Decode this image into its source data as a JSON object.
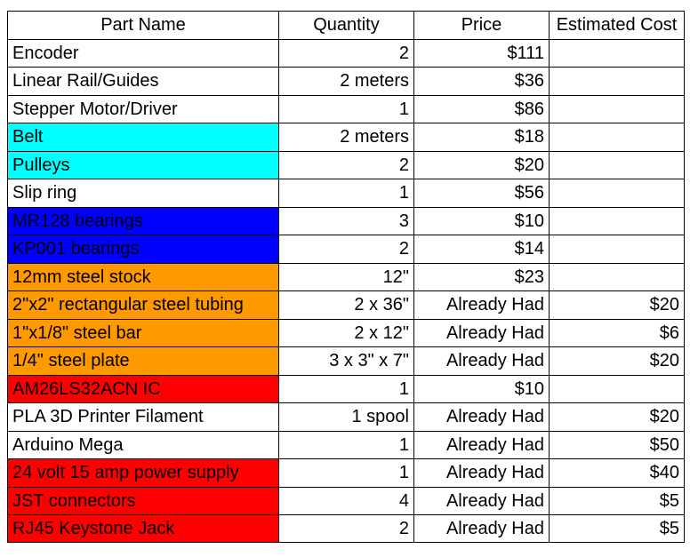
{
  "headers": {
    "part_name": "Part Name",
    "quantity": "Quantity",
    "price": "Price",
    "estimated_cost": "Estimated Cost"
  },
  "colors": {
    "white": "#ffffff",
    "cyan": "#00ffff",
    "blue": "#0000ff",
    "orange": "#ff9900",
    "red": "#ff0000"
  },
  "rows": [
    {
      "part": "Encoder",
      "quantity": "2",
      "price": "$111",
      "estimated_cost": "",
      "color": "white"
    },
    {
      "part": "Linear Rail/Guides",
      "quantity": "2 meters",
      "price": "$36",
      "estimated_cost": "",
      "color": "white"
    },
    {
      "part": "Stepper Motor/Driver",
      "quantity": "1",
      "price": "$86",
      "estimated_cost": "",
      "color": "white"
    },
    {
      "part": "Belt",
      "quantity": "2 meters",
      "price": "$18",
      "estimated_cost": "",
      "color": "cyan"
    },
    {
      "part": "Pulleys",
      "quantity": "2",
      "price": "$20",
      "estimated_cost": "",
      "color": "cyan"
    },
    {
      "part": "Slip ring",
      "quantity": "1",
      "price": "$56",
      "estimated_cost": "",
      "color": "white"
    },
    {
      "part": "MR128 bearings",
      "quantity": "3",
      "price": "$10",
      "estimated_cost": "",
      "color": "blue"
    },
    {
      "part": "KP001 bearings",
      "quantity": "2",
      "price": "$14",
      "estimated_cost": "",
      "color": "blue"
    },
    {
      "part": "12mm steel stock",
      "quantity": "12\"",
      "price": "$23",
      "estimated_cost": "",
      "color": "orange"
    },
    {
      "part": "2\"x2\" rectangular steel tubing",
      "quantity": "2 x 36\"",
      "price": "Already Had",
      "estimated_cost": "$20",
      "color": "orange"
    },
    {
      "part": "1\"x1/8\" steel bar",
      "quantity": "2 x 12\"",
      "price": "Already Had",
      "estimated_cost": "$6",
      "color": "orange"
    },
    {
      "part": "1/4\" steel plate",
      "quantity": "3 x 3\" x 7\"",
      "price": "Already Had",
      "estimated_cost": "$20",
      "color": "orange"
    },
    {
      "part": "AM26LS32ACN IC",
      "quantity": "1",
      "price": "$10",
      "estimated_cost": "",
      "color": "red"
    },
    {
      "part": "PLA 3D Printer Filament",
      "quantity": "1 spool",
      "price": "Already Had",
      "estimated_cost": "$20",
      "color": "white"
    },
    {
      "part": "Arduino Mega",
      "quantity": "1",
      "price": "Already Had",
      "estimated_cost": "$50",
      "color": "white"
    },
    {
      "part": "24 volt 15 amp power supply",
      "quantity": "1",
      "price": "Already Had",
      "estimated_cost": "$40",
      "color": "red"
    },
    {
      "part": "JST connectors",
      "quantity": "4",
      "price": "Already Had",
      "estimated_cost": "$5",
      "color": "red"
    },
    {
      "part": "RJ45 Keystone Jack",
      "quantity": "2",
      "price": "Already Had",
      "estimated_cost": "$5",
      "color": "red"
    }
  ]
}
